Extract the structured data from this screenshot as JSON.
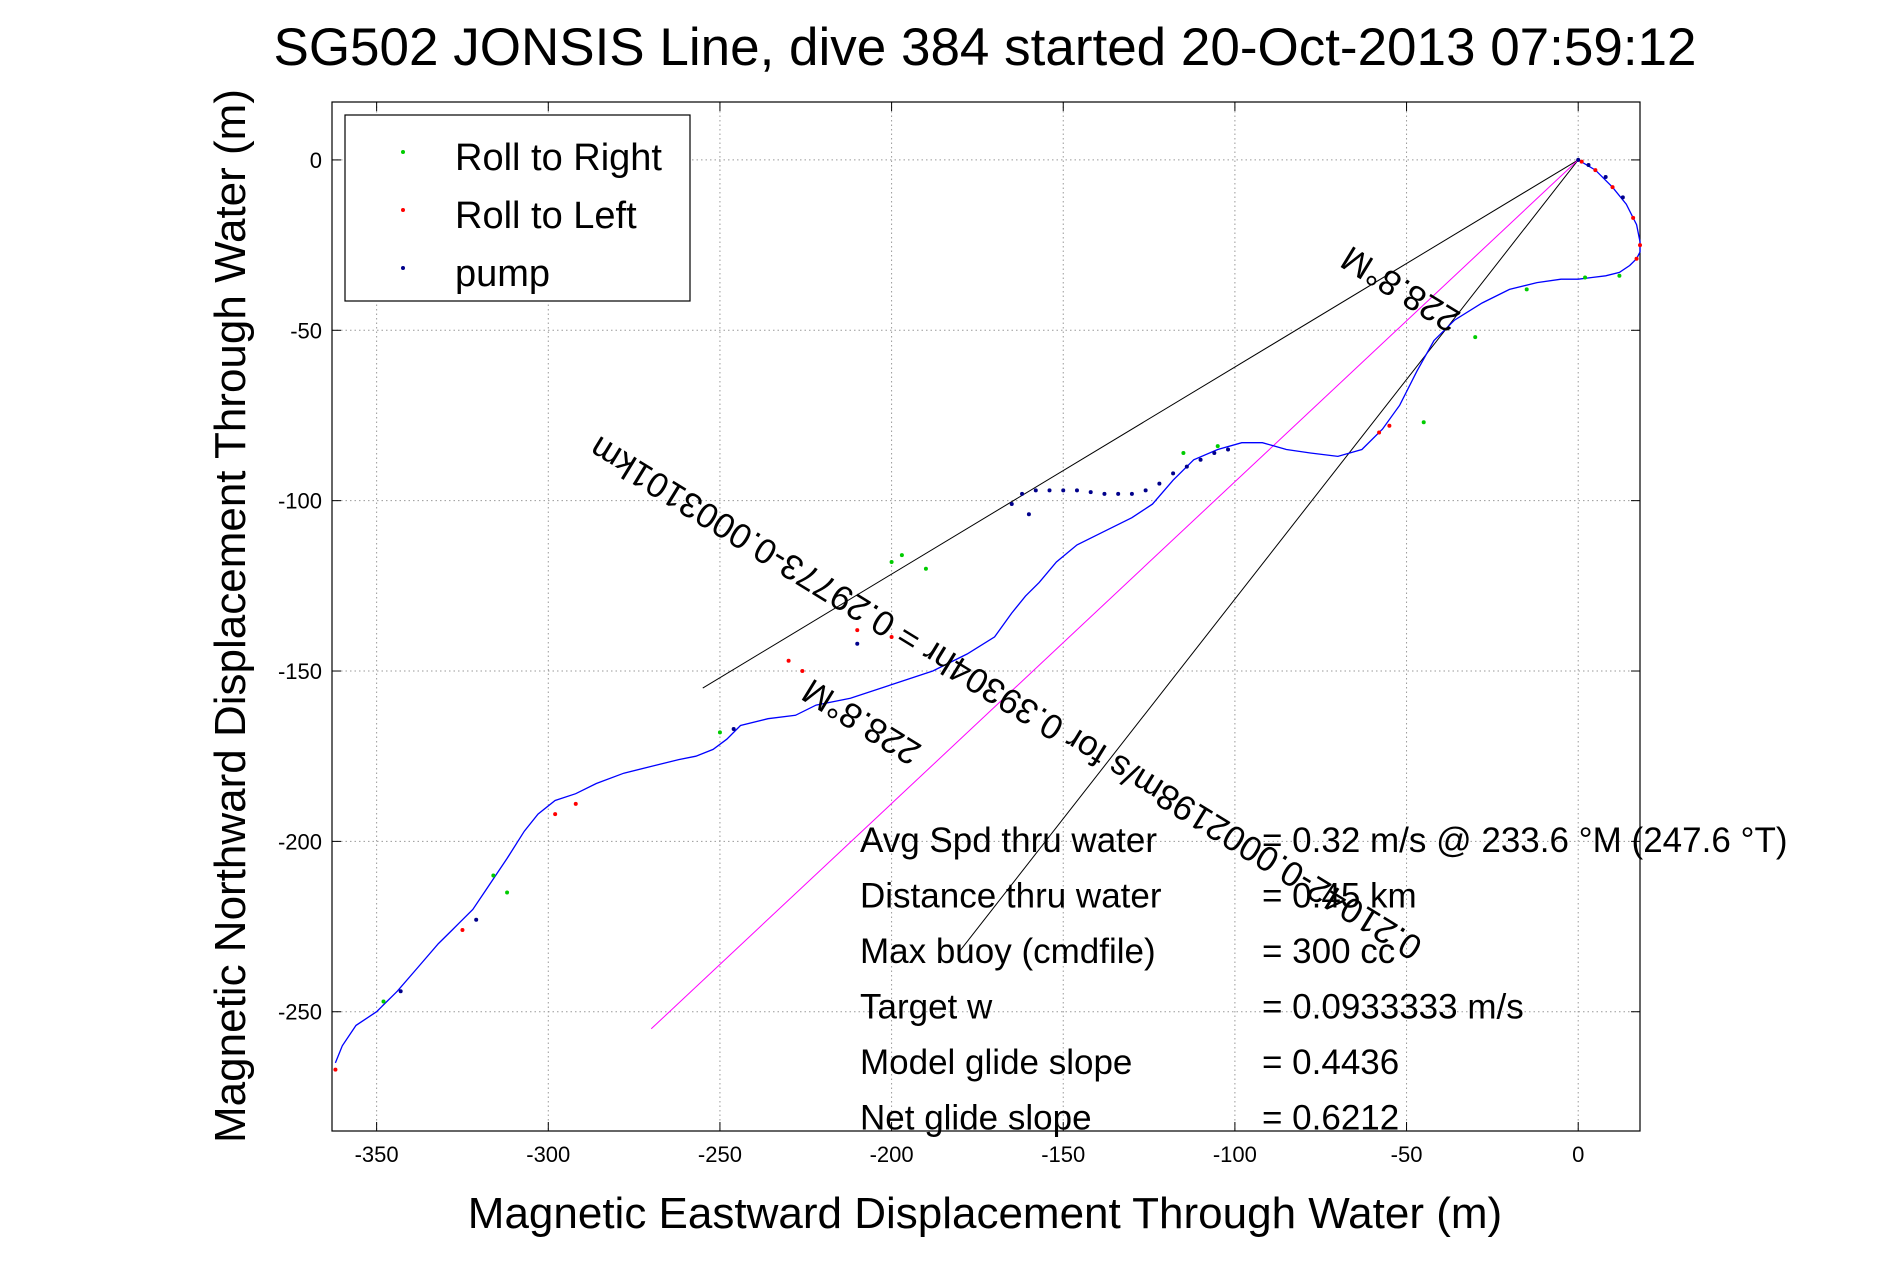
{
  "chart_data": {
    "type": "scatter",
    "title": "SG502 JONSIS Line, dive 384 started 20-Oct-2013 07:59:12",
    "xlabel": "Magnetic Eastward Displacement Through Water (m)",
    "ylabel": "Magnetic Northward Displacement Through Water (m)",
    "xlim": [
      -363,
      18
    ],
    "ylim": [
      -285,
      17
    ],
    "xticks": [
      -350,
      -300,
      -250,
      -200,
      -150,
      -100,
      -50,
      0
    ],
    "yticks": [
      0,
      -50,
      -100,
      -150,
      -200,
      -250
    ],
    "grid": true,
    "legend_position": "top-left",
    "track_color": "#0000ff",
    "legend": [
      {
        "label": "Roll to Right",
        "color": "#00cc00"
      },
      {
        "label": "Roll to Left",
        "color": "#ff0000"
      },
      {
        "label": "pump",
        "color": "#00008b"
      }
    ],
    "track": {
      "x": [
        0,
        5,
        10,
        14,
        17,
        18,
        18,
        17,
        15,
        12,
        8,
        4,
        0,
        -5,
        -12,
        -20,
        -28,
        -36,
        -42,
        -47,
        -52,
        -57,
        -63,
        -70,
        -78,
        -85,
        -92,
        -98,
        -105,
        -112,
        -118,
        -124,
        -130,
        -138,
        -146,
        -152,
        -157,
        -161,
        -165,
        -170,
        -178,
        -188,
        -200,
        -212,
        -222,
        -228,
        -236,
        -244,
        -248,
        -252,
        -257,
        -262,
        -270,
        -278,
        -286,
        -292,
        -298,
        -303,
        -307,
        -312,
        -318,
        -322,
        -326,
        -328,
        -332,
        -338,
        -344,
        -350,
        -356,
        -360,
        -362
      ],
      "y": [
        0,
        -3,
        -8,
        -13,
        -19,
        -24,
        -27,
        -29,
        -31,
        -33,
        -34,
        -34.5,
        -35,
        -35,
        -36,
        -38,
        -42,
        -47,
        -53,
        -62,
        -72,
        -79,
        -85,
        -87,
        -86,
        -85,
        -83,
        -83,
        -85,
        -88,
        -94,
        -101,
        -105,
        -109,
        -113,
        -118,
        -124,
        -128,
        -133,
        -140,
        -145,
        -150,
        -154,
        -158,
        -160,
        -163,
        -164,
        -166,
        -170,
        -173,
        -175,
        -176,
        -178,
        -180,
        -183,
        -186,
        -188,
        -192,
        -197,
        -205,
        -214,
        -220,
        -224,
        -226,
        -230,
        -237,
        -244,
        -250,
        -254,
        -260,
        -265
      ]
    },
    "roll_right": {
      "x": [
        12,
        2,
        -15,
        -30,
        -45,
        -105,
        -115,
        -190,
        -197,
        -200,
        -250,
        -312,
        -316,
        -348
      ],
      "y": [
        -34,
        -34.5,
        -38,
        -52,
        -77,
        -84,
        -86,
        -120,
        -116,
        -118,
        -168,
        -215,
        -210,
        -247
      ]
    },
    "roll_left": {
      "x": [
        1,
        5,
        10,
        16,
        18,
        17,
        -55,
        -58,
        -200,
        -210,
        -226,
        -230,
        -292,
        -298,
        -325,
        -362
      ],
      "y": [
        -0.5,
        -3,
        -8,
        -17,
        -25,
        -29,
        -78,
        -80,
        -140,
        -138,
        -150,
        -147,
        -189,
        -192,
        -226,
        -267
      ]
    },
    "pump": {
      "x": [
        0,
        3,
        8,
        13,
        -165,
        -162,
        -158,
        -154,
        -150,
        -146,
        -142,
        -138,
        -134,
        -130,
        -126,
        -122,
        -118,
        -114,
        -110,
        -106,
        -102,
        -160,
        -210,
        -246,
        -321,
        -343
      ],
      "y": [
        0,
        -1.5,
        -5,
        -11,
        -101,
        -98,
        -97,
        -97,
        -97,
        -97,
        -97.5,
        -98,
        -98,
        -98,
        -97,
        -95,
        -92,
        -90,
        -88,
        -86,
        -85,
        -104,
        -142,
        -167,
        -223,
        -244
      ]
    },
    "fit_lines": [
      {
        "from": [
          0,
          0
        ],
        "to": [
          -255,
          -155
        ],
        "color": "#000000"
      },
      {
        "from": [
          0,
          0
        ],
        "to": [
          -180,
          -232
        ],
        "color": "#000000"
      },
      {
        "from": [
          0,
          0
        ],
        "to": [
          -270,
          -255
        ],
        "color": "#ff00ff"
      }
    ],
    "rotated_labels": [
      {
        "text": "228.8°M",
        "x": -50,
        "y": -35
      },
      {
        "text": "0.21042-0.0002198m/s for 0.39304hr = 0.29773-0.0003101km",
        "x": -165,
        "y": -155
      },
      {
        "text": "228.8°M",
        "x": -207,
        "y": -162
      }
    ],
    "annotations": [
      {
        "label": "Avg Spd thru water",
        "value": "=  0.32 m/s @ 233.6 °M (247.6 °T)"
      },
      {
        "label": "Distance thru water",
        "value": "=  0.45 km"
      },
      {
        "label": "Max buoy (cmdfile)",
        "value": "= 300 cc"
      },
      {
        "label": "Target w",
        "value": "= 0.0933333 m/s"
      },
      {
        "label": "Model glide slope",
        "value": "= 0.4436"
      },
      {
        "label": "Net glide slope",
        "value": "= 0.6212"
      }
    ]
  }
}
